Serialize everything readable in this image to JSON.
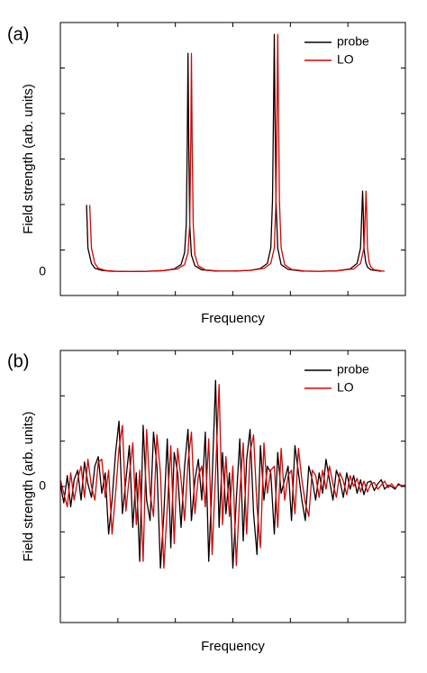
{
  "figure": {
    "panels": [
      {
        "panel_label": "(a)",
        "xlabel": "Frequency",
        "ylabel": "Field strength (arb. units)",
        "zero_label": "0",
        "legend": [
          {
            "label": "probe",
            "color": "#000000"
          },
          {
            "label": "LO",
            "color": "#e00000"
          }
        ]
      },
      {
        "panel_label": "(b)",
        "xlabel": "Frequency",
        "ylabel": "Field strength (arb. units)",
        "zero_label": "0",
        "legend": [
          {
            "label": "probe",
            "color": "#000000"
          },
          {
            "label": "LO",
            "color": "#e00000"
          }
        ]
      }
    ]
  },
  "chart_data": [
    {
      "type": "line",
      "title": "",
      "xlabel": "Frequency",
      "ylabel": "Field strength (arb. units)",
      "xlim": [
        0,
        1
      ],
      "ylim": [
        -0.1,
        1.05
      ],
      "y_tick_labels": [
        "0"
      ],
      "grid": false,
      "legend_position": "top-right",
      "series": [
        {
          "name": "probe",
          "color": "#000000",
          "x": [
            0.075,
            0.076,
            0.08,
            0.09,
            0.1,
            0.12,
            0.15,
            0.2,
            0.25,
            0.3,
            0.33,
            0.35,
            0.36,
            0.365,
            0.368,
            0.37,
            0.372,
            0.375,
            0.38,
            0.39,
            0.41,
            0.45,
            0.5,
            0.55,
            0.58,
            0.6,
            0.61,
            0.615,
            0.618,
            0.62,
            0.622,
            0.625,
            0.63,
            0.64,
            0.66,
            0.7,
            0.75,
            0.8,
            0.84,
            0.86,
            0.87,
            0.874,
            0.876,
            0.878,
            0.88,
            0.885,
            0.89,
            0.9,
            0.93
          ],
          "y": [
            0.28,
            0.28,
            0.1,
            0.035,
            0.015,
            0.006,
            0.002,
            0.001,
            0.002,
            0.005,
            0.012,
            0.03,
            0.08,
            0.2,
            0.55,
            0.92,
            0.55,
            0.2,
            0.07,
            0.025,
            0.008,
            0.003,
            0.003,
            0.006,
            0.014,
            0.035,
            0.1,
            0.3,
            0.7,
            1.0,
            0.7,
            0.3,
            0.1,
            0.03,
            0.01,
            0.003,
            0.002,
            0.004,
            0.012,
            0.035,
            0.1,
            0.25,
            0.34,
            0.25,
            0.1,
            0.04,
            0.02,
            0.008,
            0.002
          ]
        },
        {
          "name": "LO",
          "color": "#e00000",
          "x": [
            0.084,
            0.085,
            0.09,
            0.1,
            0.11,
            0.13,
            0.16,
            0.2,
            0.25,
            0.3,
            0.34,
            0.36,
            0.37,
            0.375,
            0.378,
            0.38,
            0.382,
            0.385,
            0.39,
            0.4,
            0.42,
            0.46,
            0.5,
            0.55,
            0.59,
            0.61,
            0.62,
            0.625,
            0.628,
            0.63,
            0.632,
            0.635,
            0.64,
            0.65,
            0.67,
            0.71,
            0.75,
            0.8,
            0.85,
            0.87,
            0.88,
            0.884,
            0.886,
            0.888,
            0.89,
            0.895,
            0.9,
            0.91,
            0.94
          ],
          "y": [
            0.28,
            0.28,
            0.1,
            0.035,
            0.015,
            0.006,
            0.002,
            0.001,
            0.002,
            0.005,
            0.012,
            0.03,
            0.08,
            0.2,
            0.55,
            0.92,
            0.55,
            0.2,
            0.07,
            0.025,
            0.008,
            0.003,
            0.003,
            0.006,
            0.014,
            0.035,
            0.1,
            0.3,
            0.7,
            1.0,
            0.7,
            0.3,
            0.1,
            0.03,
            0.01,
            0.003,
            0.002,
            0.004,
            0.012,
            0.035,
            0.1,
            0.25,
            0.34,
            0.25,
            0.1,
            0.04,
            0.02,
            0.008,
            0.002
          ]
        }
      ]
    },
    {
      "type": "line",
      "title": "",
      "xlabel": "Frequency",
      "ylabel": "Field strength (arb. units)",
      "xlim": [
        0,
        1
      ],
      "ylim": [
        -1.0,
        1.0
      ],
      "y_tick_labels": [
        "0"
      ],
      "grid": false,
      "legend_position": "top-right",
      "series": [
        {
          "name": "probe",
          "color": "#000000",
          "x": [
            0.0,
            0.01,
            0.02,
            0.03,
            0.04,
            0.05,
            0.06,
            0.07,
            0.08,
            0.09,
            0.1,
            0.11,
            0.12,
            0.13,
            0.14,
            0.15,
            0.16,
            0.17,
            0.18,
            0.19,
            0.2,
            0.21,
            0.22,
            0.23,
            0.24,
            0.25,
            0.26,
            0.27,
            0.28,
            0.29,
            0.3,
            0.31,
            0.32,
            0.33,
            0.34,
            0.35,
            0.36,
            0.37,
            0.38,
            0.39,
            0.4,
            0.41,
            0.42,
            0.43,
            0.44,
            0.45,
            0.46,
            0.47,
            0.48,
            0.49,
            0.5,
            0.51,
            0.52,
            0.53,
            0.54,
            0.55,
            0.56,
            0.57,
            0.58,
            0.59,
            0.6,
            0.61,
            0.62,
            0.63,
            0.64,
            0.65,
            0.66,
            0.67,
            0.68,
            0.69,
            0.7,
            0.71,
            0.72,
            0.73,
            0.74,
            0.75,
            0.76,
            0.77,
            0.78,
            0.79,
            0.8,
            0.81,
            0.82,
            0.83,
            0.84,
            0.85,
            0.86,
            0.87,
            0.88,
            0.89,
            0.9,
            0.91,
            0.92,
            0.93,
            0.94,
            0.95,
            0.96,
            0.97,
            0.98,
            0.99,
            1.0
          ],
          "y": [
            0.02,
            -0.12,
            0.08,
            -0.15,
            0.05,
            0.12,
            -0.1,
            0.18,
            0.02,
            -0.08,
            0.15,
            0.22,
            -0.05,
            0.1,
            -0.35,
            -0.1,
            0.25,
            0.48,
            -0.2,
            0.05,
            0.3,
            -0.3,
            0.1,
            -0.55,
            0.45,
            -0.1,
            -0.25,
            0.4,
            0.15,
            -0.6,
            -0.2,
            0.35,
            -0.45,
            0.25,
            0.1,
            -0.3,
            0.15,
            0.42,
            -0.25,
            0.05,
            0.2,
            -0.1,
            0.4,
            -0.55,
            0.05,
            0.78,
            -0.3,
            0.25,
            -0.2,
            0.1,
            -0.6,
            -0.1,
            0.35,
            -0.4,
            0.2,
            0.42,
            -0.2,
            -0.5,
            0.3,
            -0.1,
            0.15,
            0.1,
            -0.35,
            0.25,
            -0.05,
            0.05,
            0.15,
            -0.25,
            0.3,
            0.1,
            -0.1,
            -0.25,
            0.15,
            0.05,
            -0.1,
            0.1,
            -0.05,
            0.2,
            0.05,
            -0.1,
            0.12,
            0.05,
            -0.08,
            0.1,
            -0.02,
            0.08,
            -0.05,
            0.05,
            -0.06,
            0.03,
            0.04,
            -0.03,
            0.02,
            0.05,
            -0.02,
            0.01,
            0.0,
            -0.02,
            0.02,
            0.0,
            0.01
          ]
        },
        {
          "name": "LO",
          "color": "#e00000",
          "x": [
            0.0,
            0.01,
            0.02,
            0.03,
            0.04,
            0.05,
            0.06,
            0.07,
            0.08,
            0.09,
            0.1,
            0.11,
            0.12,
            0.13,
            0.14,
            0.15,
            0.16,
            0.17,
            0.18,
            0.19,
            0.2,
            0.21,
            0.22,
            0.23,
            0.24,
            0.25,
            0.26,
            0.27,
            0.28,
            0.29,
            0.3,
            0.31,
            0.32,
            0.33,
            0.34,
            0.35,
            0.36,
            0.37,
            0.38,
            0.39,
            0.4,
            0.41,
            0.42,
            0.43,
            0.44,
            0.45,
            0.46,
            0.47,
            0.48,
            0.49,
            0.5,
            0.51,
            0.52,
            0.53,
            0.54,
            0.55,
            0.56,
            0.57,
            0.58,
            0.59,
            0.6,
            0.61,
            0.62,
            0.63,
            0.64,
            0.65,
            0.66,
            0.67,
            0.68,
            0.69,
            0.7,
            0.71,
            0.72,
            0.73,
            0.74,
            0.75,
            0.76,
            0.77,
            0.78,
            0.79,
            0.8,
            0.81,
            0.82,
            0.83,
            0.84,
            0.85,
            0.86,
            0.87,
            0.88,
            0.89,
            0.9,
            0.91,
            0.92,
            0.93,
            0.94,
            0.95,
            0.96,
            0.97,
            0.98,
            0.99,
            1.0
          ],
          "y": [
            0.05,
            -0.05,
            -0.15,
            0.1,
            -0.1,
            0.05,
            0.15,
            -0.08,
            0.2,
            0.0,
            -0.1,
            0.18,
            0.2,
            -0.08,
            0.12,
            -0.35,
            -0.05,
            0.28,
            0.45,
            -0.18,
            0.08,
            0.32,
            -0.28,
            0.12,
            -0.55,
            0.42,
            -0.05,
            -0.22,
            0.38,
            0.1,
            -0.6,
            -0.15,
            0.3,
            -0.42,
            0.28,
            0.05,
            -0.25,
            0.18,
            0.4,
            -0.2,
            0.08,
            0.15,
            -0.15,
            0.35,
            -0.5,
            0.1,
            0.75,
            -0.28,
            0.22,
            -0.22,
            0.15,
            -0.58,
            -0.05,
            0.32,
            -0.35,
            0.25,
            0.38,
            -0.15,
            -0.45,
            0.32,
            -0.05,
            0.12,
            0.15,
            -0.3,
            0.28,
            -0.1,
            0.08,
            0.12,
            -0.2,
            0.28,
            0.05,
            -0.12,
            -0.22,
            0.12,
            0.08,
            -0.08,
            0.12,
            -0.02,
            0.15,
            0.02,
            -0.08,
            0.1,
            0.04,
            -0.06,
            0.08,
            0.0,
            0.06,
            -0.04,
            0.04,
            -0.04,
            0.02,
            0.03,
            -0.02,
            0.01,
            0.04,
            -0.01,
            0.02,
            -0.01,
            0.01,
            0.01,
            0.0
          ]
        }
      ]
    }
  ]
}
